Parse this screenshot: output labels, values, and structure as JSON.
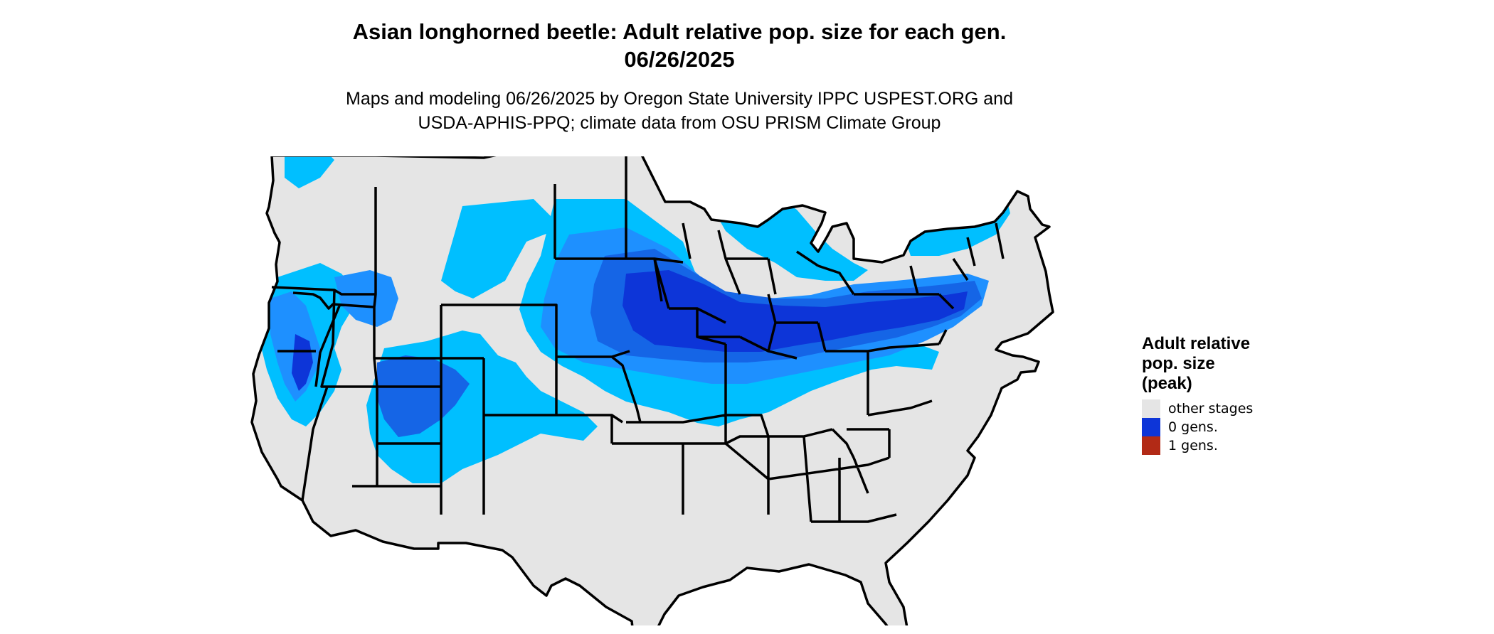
{
  "title": {
    "line1": "Asian longhorned beetle: Adult relative pop. size for each gen.",
    "line2": "06/26/2025"
  },
  "subtitle": {
    "line1": "Maps and modeling 06/26/2025 by Oregon State University IPPC USPEST.ORG and",
    "line2": "USDA-APHIS-PPQ; climate data from OSU PRISM Climate Group"
  },
  "legend": {
    "title_lines": [
      "Adult relative",
      "pop. size",
      "(peak)"
    ],
    "items": [
      {
        "label": "other stages",
        "color": "#e5e5e5"
      },
      {
        "label": "0 gens.",
        "color": "#0d35d8"
      },
      {
        "label": "1 gens.",
        "color": "#b22a16"
      }
    ]
  },
  "map_colors": {
    "land": "#e5e5e5",
    "light_blue": "#00bfff",
    "medium_blue": "#1e90ff",
    "blue": "#1565e6",
    "dark_blue": "#0d35d8",
    "border": "#000000"
  }
}
